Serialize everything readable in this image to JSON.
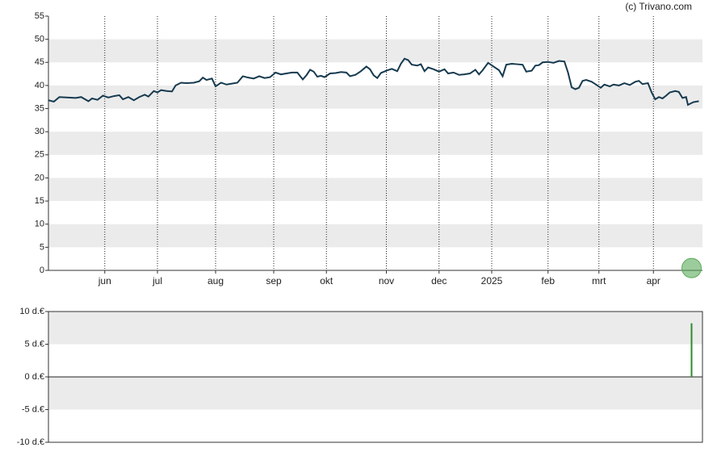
{
  "chart_data": [
    {
      "type": "line",
      "source": "(c) Trivano.com",
      "color": "#163a4f",
      "x": [
        0,
        3,
        6,
        10,
        15,
        18,
        22,
        24,
        27,
        30,
        33,
        36,
        39,
        41,
        44,
        47,
        50,
        53,
        55,
        58,
        60,
        62,
        65,
        68,
        70,
        73,
        76,
        80,
        83,
        85,
        87,
        90,
        92,
        95,
        98,
        101,
        104,
        107,
        110,
        113,
        116,
        119,
        122,
        125,
        128,
        131,
        134,
        137,
        140,
        142,
        144,
        146,
        148,
        150,
        152,
        155,
        158,
        161,
        164,
        166,
        169,
        172,
        175,
        177,
        179,
        181,
        183,
        186,
        189,
        192,
        194,
        196,
        198,
        200,
        203,
        205,
        207,
        209,
        212,
        215,
        218,
        220,
        223,
        226,
        229,
        232,
        235,
        237,
        239,
        242,
        245,
        248,
        250,
        252,
        255,
        258,
        261,
        263,
        266,
        268,
        270,
        272,
        275,
        278,
        281,
        284,
        286,
        288,
        290,
        292,
        294,
        296,
        299,
        301,
        304,
        306,
        309,
        311,
        314,
        317,
        320,
        323,
        325,
        327,
        330,
        332,
        334,
        336,
        338,
        340,
        342,
        345,
        347,
        349,
        351,
        352,
        355,
        358
      ],
      "values": [
        36.8,
        36.5,
        37.5,
        37.4,
        37.3,
        37.5,
        36.6,
        37.2,
        36.9,
        37.8,
        37.4,
        37.7,
        37.9,
        37.0,
        37.5,
        36.8,
        37.5,
        38.0,
        37.6,
        38.8,
        38.5,
        39.0,
        38.8,
        38.7,
        40.0,
        40.6,
        40.5,
        40.6,
        40.9,
        41.7,
        41.2,
        41.5,
        39.8,
        40.6,
        40.2,
        40.4,
        40.6,
        42.0,
        41.7,
        41.5,
        42.0,
        41.6,
        41.8,
        42.8,
        42.4,
        42.6,
        42.8,
        42.8,
        41.3,
        42.2,
        43.4,
        43.0,
        41.9,
        42.1,
        41.8,
        42.6,
        42.7,
        42.9,
        42.8,
        42.0,
        42.3,
        43.1,
        44.1,
        43.5,
        42.2,
        41.6,
        42.7,
        43.2,
        43.6,
        43.1,
        44.7,
        45.8,
        45.5,
        44.5,
        44.3,
        44.6,
        43.1,
        43.9,
        43.5,
        43.0,
        43.5,
        42.6,
        42.8,
        42.3,
        42.4,
        42.6,
        43.4,
        42.4,
        43.3,
        44.9,
        44.1,
        43.3,
        42.0,
        44.5,
        44.7,
        44.6,
        44.5,
        43.0,
        43.2,
        44.3,
        44.4,
        45.0,
        45.1,
        44.9,
        45.3,
        45.2,
        42.8,
        39.6,
        39.2,
        39.5,
        41.0,
        41.2,
        40.8,
        40.3,
        39.5,
        40.2,
        39.8,
        40.2,
        40.0,
        40.5,
        40.1,
        40.8,
        41.0,
        40.3,
        40.5,
        38.5,
        37.0,
        37.5,
        37.2,
        37.8,
        38.5,
        38.8,
        38.6,
        37.3,
        37.5,
        35.8,
        36.4,
        36.6
      ],
      "events": {
        "x": [
          354
        ],
        "values": [
          0.5
        ],
        "color": "#5aaa5a"
      },
      "xlim": [
        0,
        360
      ],
      "xticks": [
        {
          "value": 31,
          "label": "jun"
        },
        {
          "value": 60,
          "label": "jul"
        },
        {
          "value": 92,
          "label": "aug"
        },
        {
          "value": 124,
          "label": "sep"
        },
        {
          "value": 153,
          "label": "okt"
        },
        {
          "value": 186,
          "label": "nov"
        },
        {
          "value": 215,
          "label": "dec"
        },
        {
          "value": 244,
          "label": "2025"
        },
        {
          "value": 275,
          "label": "feb"
        },
        {
          "value": 303,
          "label": "mrt"
        },
        {
          "value": 333,
          "label": "apr"
        }
      ],
      "ylim": [
        0,
        55
      ],
      "yticks": [
        0,
        5,
        10,
        15,
        20,
        25,
        30,
        35,
        40,
        45,
        50,
        55
      ],
      "grid": true,
      "xgrid": true
    },
    {
      "type": "bar",
      "color": "#2e8b2e",
      "x": [
        354
      ],
      "values": [
        8.2
      ],
      "xlim": [
        0,
        360
      ],
      "ylim": [
        -10,
        10
      ],
      "yticks": [
        {
          "value": -10,
          "label": "-10 d.€"
        },
        {
          "value": -5,
          "label": "-5 d.€"
        },
        {
          "value": 0,
          "label": "0 d.€"
        },
        {
          "value": 5,
          "label": "5 d.€"
        },
        {
          "value": 10,
          "label": "10 d.€"
        }
      ],
      "grid": true
    }
  ]
}
